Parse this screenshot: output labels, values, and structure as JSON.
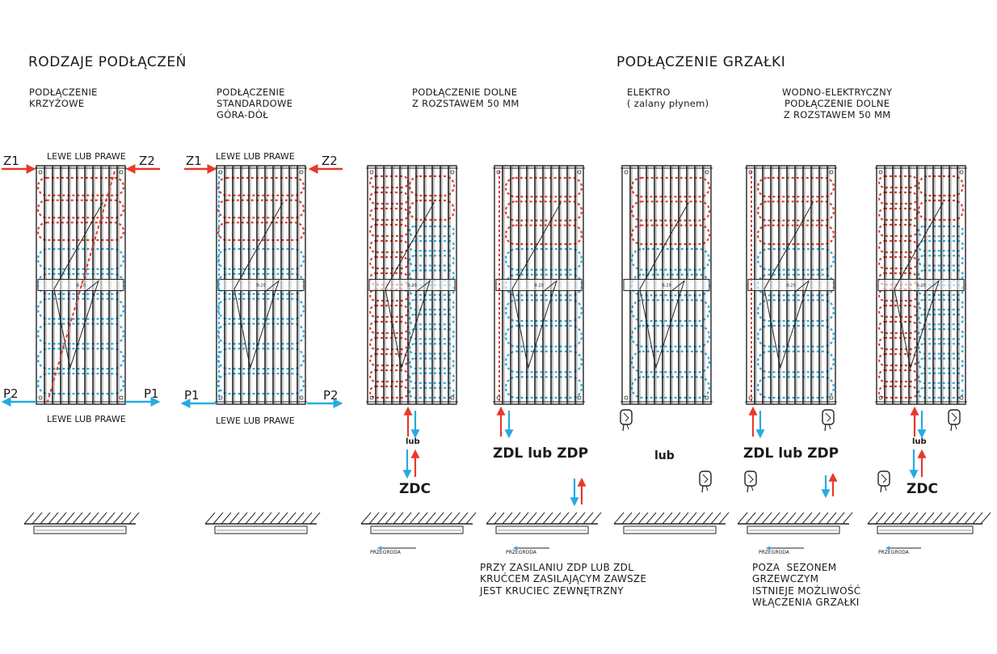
{
  "headings": {
    "types": "RODZAJE PODŁĄCZEŃ",
    "heater": "PODŁĄCZENIE GRZAŁKI"
  },
  "captions": {
    "c1": "PODŁĄCZENIE\nKRZYŻOWE",
    "c2": "PODŁĄCZENIE\nSTANDARDOWE\nGÓRA-DÓŁ",
    "c3": "PODŁĄCZENIE DOLNE\nZ ROZSTAWEM 50 MM",
    "c4": "ELEKTRO\n( zalany płynem)",
    "c5": "WODNO-ELEKTRYCZNY\nPODŁĄCZENIE DOLNE\nZ ROZSTAWEM 50 MM"
  },
  "side_labels": {
    "top1": "LEWE LUB PRAWE",
    "bottom1": "LEWE LUB PRAWE",
    "top2": "LEWE LUB PRAWE",
    "bottom2": "LEWE LUB PRAWE"
  },
  "ports": {
    "z1a": "Z1",
    "z2a": "Z2",
    "p2a": "P2",
    "p1a": "P1",
    "z1b": "Z1",
    "z2b": "Z2",
    "p1b": "P1",
    "p2b": "P2"
  },
  "options": {
    "lub_small": "lub",
    "zdc": "ZDC",
    "zdl_zdp": "ZDL lub ZDP",
    "lub_mid": "lub",
    "zdl_zdp2": "ZDL lub ZDP",
    "lub_small2": "lub",
    "zdc2": "ZDC"
  },
  "panel_mark": "B-20",
  "partition": "PRZEGRODA",
  "notes": {
    "n1": "PRZY ZASILANIU ZDP LUB ZDL\nKRUĆCEM ZASILAJĄCYM ZAWSZE\nJEST KRUCIEC ZEWNĘTRZNY",
    "n2": "POZA  SEZONEM\nGRZEWCZYM\nISTNIEJE MOŻLIWOŚĆ\nWŁĄCZENIA GRZAŁKI"
  },
  "colors": {
    "hot": "#e8392a",
    "cold": "#27a9e1",
    "line": "#222222"
  }
}
